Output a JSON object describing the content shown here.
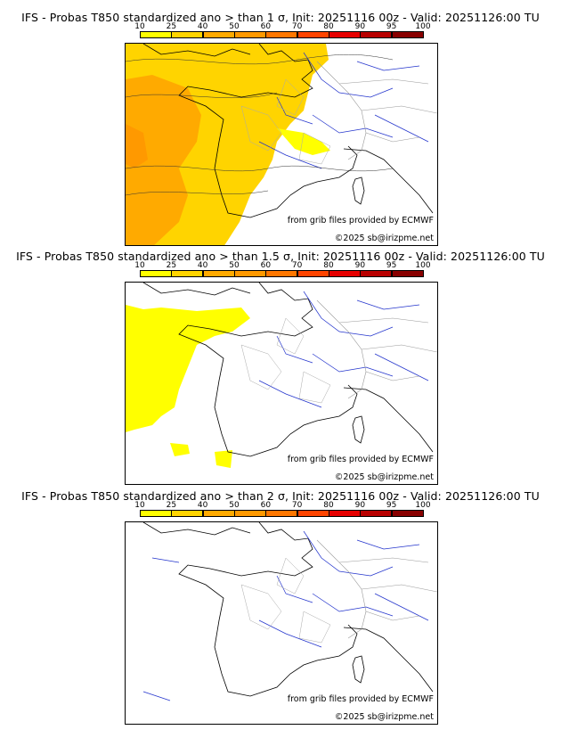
{
  "colorbar": {
    "ticks": [
      "10",
      "25",
      "40",
      "50",
      "60",
      "70",
      "80",
      "90",
      "95",
      "100"
    ],
    "colors": [
      "#ffff00",
      "#ffd400",
      "#ffaa00",
      "#ff9900",
      "#ff7700",
      "#ff4400",
      "#e60000",
      "#b80000",
      "#880000"
    ]
  },
  "panels": [
    {
      "title": "IFS - Probas T850  standardized ano > than 1 σ, Init: 20251116 00z - Valid: 20251126:00 TU",
      "credit_source": "from grib files provided by ECMWF",
      "credit_copy": "©2025 sb@irizpme.net",
      "level": "1 sigma"
    },
    {
      "title": "IFS - Probas T850  standardized ano > than 1.5 σ, Init: 20251116 00z - Valid: 20251126:00 TU",
      "credit_source": "from grib files provided by ECMWF",
      "credit_copy": "©2025 sb@irizpme.net",
      "level": "1.5 sigma"
    },
    {
      "title": "IFS - Probas T850  standardized ano > than 2 σ, Init: 20251116 00z - Valid: 20251126:00 TU",
      "credit_source": "from grib files provided by ECMWF",
      "credit_copy": "©2025 sb@irizpme.net",
      "level": "2 sigma"
    }
  ]
}
